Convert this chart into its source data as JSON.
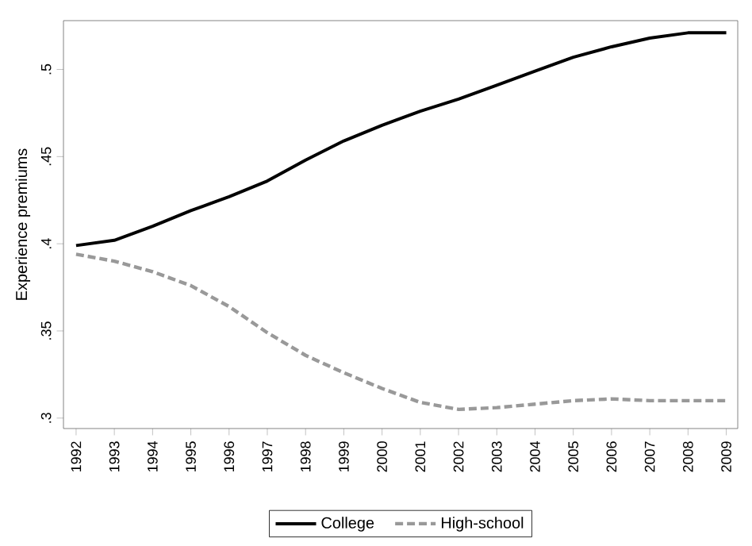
{
  "chart_data": {
    "type": "line",
    "ylabel": "Experience premiums",
    "categories": [
      "1992",
      "1993",
      "1994",
      "1995",
      "1996",
      "1997",
      "1998",
      "1999",
      "2000",
      "2001",
      "2002",
      "2003",
      "2004",
      "2005",
      "2006",
      "2007",
      "2008",
      "2009"
    ],
    "series": [
      {
        "name": "College",
        "color": "#000000",
        "line_style": "solid",
        "values": [
          0.399,
          0.402,
          0.41,
          0.419,
          0.427,
          0.436,
          0.448,
          0.459,
          0.468,
          0.476,
          0.483,
          0.491,
          0.499,
          0.507,
          0.513,
          0.518,
          0.521,
          0.521
        ]
      },
      {
        "name": "High-school",
        "color": "#999999",
        "line_style": "dashed",
        "values": [
          0.394,
          0.39,
          0.384,
          0.376,
          0.364,
          0.349,
          0.336,
          0.326,
          0.317,
          0.309,
          0.305,
          0.306,
          0.308,
          0.31,
          0.311,
          0.31,
          0.31,
          0.31
        ]
      }
    ],
    "ylim": [
      0.294,
      0.528
    ],
    "yticks": [
      {
        "value": 0.3,
        "label": ".3"
      },
      {
        "value": 0.35,
        "label": ".35"
      },
      {
        "value": 0.4,
        "label": ".4"
      },
      {
        "value": 0.45,
        "label": ".45"
      },
      {
        "value": 0.5,
        "label": ".5"
      }
    ],
    "legend": "bottom",
    "grid": false,
    "marker": "none"
  }
}
